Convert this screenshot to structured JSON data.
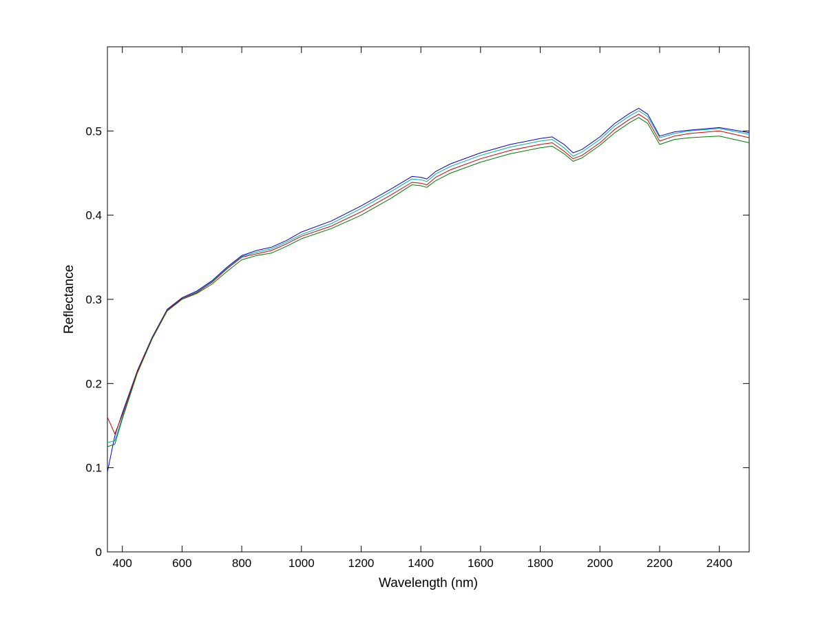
{
  "chart_data": {
    "type": "line",
    "xlabel": "Wavelength (nm)",
    "ylabel": "Reflectance",
    "xlim": [
      350,
      2500
    ],
    "ylim": [
      0,
      0.6
    ],
    "xticks": [
      400,
      600,
      800,
      1000,
      1200,
      1400,
      1600,
      1800,
      2000,
      2200,
      2400
    ],
    "yticks": [
      0,
      0.1,
      0.2,
      0.3,
      0.4,
      0.5
    ],
    "ytick_labels": [
      "0",
      "0.1",
      "0.2",
      "0.3",
      "0.4",
      "0.5"
    ],
    "grid": false,
    "legend": "none",
    "x": [
      350,
      375,
      400,
      450,
      500,
      550,
      600,
      650,
      700,
      750,
      800,
      850,
      900,
      950,
      1000,
      1100,
      1200,
      1300,
      1370,
      1400,
      1420,
      1450,
      1500,
      1600,
      1700,
      1800,
      1840,
      1880,
      1910,
      1940,
      2000,
      2050,
      2100,
      2130,
      2160,
      2200,
      2250,
      2300,
      2400,
      2500
    ],
    "series": [
      {
        "color": "#0000cc",
        "values": [
          0.095,
          0.138,
          0.165,
          0.215,
          0.255,
          0.288,
          0.302,
          0.31,
          0.322,
          0.338,
          0.352,
          0.358,
          0.362,
          0.37,
          0.38,
          0.393,
          0.411,
          0.431,
          0.446,
          0.445,
          0.443,
          0.452,
          0.461,
          0.474,
          0.484,
          0.491,
          0.493,
          0.484,
          0.474,
          0.478,
          0.493,
          0.509,
          0.521,
          0.527,
          0.52,
          0.494,
          0.499,
          0.501,
          0.504,
          0.498
        ]
      },
      {
        "color": "#00aaaa",
        "values": [
          0.13,
          0.132,
          0.16,
          0.213,
          0.254,
          0.287,
          0.301,
          0.309,
          0.321,
          0.337,
          0.351,
          0.356,
          0.36,
          0.368,
          0.377,
          0.39,
          0.408,
          0.428,
          0.443,
          0.442,
          0.44,
          0.449,
          0.458,
          0.471,
          0.481,
          0.488,
          0.49,
          0.48,
          0.47,
          0.475,
          0.49,
          0.506,
          0.518,
          0.524,
          0.517,
          0.492,
          0.497,
          0.5,
          0.503,
          0.496
        ]
      },
      {
        "color": "#cc0000",
        "values": [
          0.16,
          0.14,
          0.163,
          0.214,
          0.254,
          0.287,
          0.301,
          0.308,
          0.32,
          0.336,
          0.35,
          0.354,
          0.358,
          0.366,
          0.375,
          0.387,
          0.404,
          0.424,
          0.439,
          0.438,
          0.436,
          0.445,
          0.454,
          0.467,
          0.477,
          0.484,
          0.486,
          0.476,
          0.467,
          0.471,
          0.486,
          0.502,
          0.514,
          0.52,
          0.513,
          0.488,
          0.494,
          0.497,
          0.5,
          0.492
        ]
      },
      {
        "color": "#007700",
        "values": [
          0.125,
          0.128,
          0.158,
          0.212,
          0.253,
          0.286,
          0.3,
          0.307,
          0.318,
          0.333,
          0.347,
          0.352,
          0.355,
          0.363,
          0.372,
          0.384,
          0.4,
          0.42,
          0.436,
          0.435,
          0.433,
          0.441,
          0.45,
          0.463,
          0.473,
          0.48,
          0.482,
          0.473,
          0.464,
          0.468,
          0.483,
          0.498,
          0.51,
          0.516,
          0.509,
          0.484,
          0.49,
          0.492,
          0.494,
          0.486
        ]
      }
    ]
  }
}
